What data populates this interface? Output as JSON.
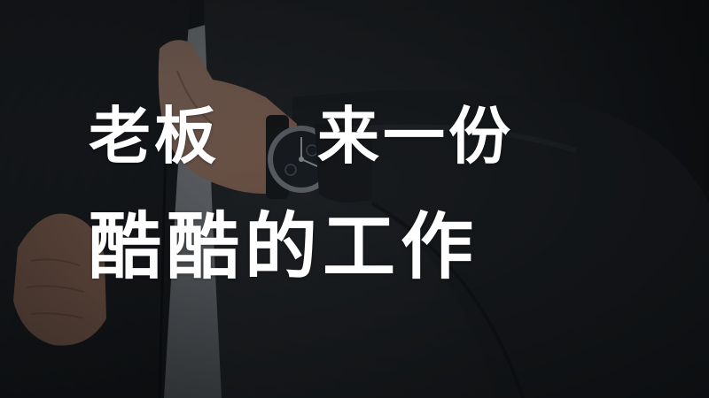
{
  "headline": {
    "line1_left": "老板",
    "line1_right": "来一份",
    "line2": "酷酷的工作"
  },
  "colors": {
    "text": "#ffffff",
    "jacket": "#24272b",
    "skin": "#c99a82",
    "shirt": "#9aa0a6",
    "watch_strap": "#1a1c1f",
    "watch_bezel": "#8f959b"
  },
  "icons": {
    "wristwatch": "wristwatch-icon"
  }
}
